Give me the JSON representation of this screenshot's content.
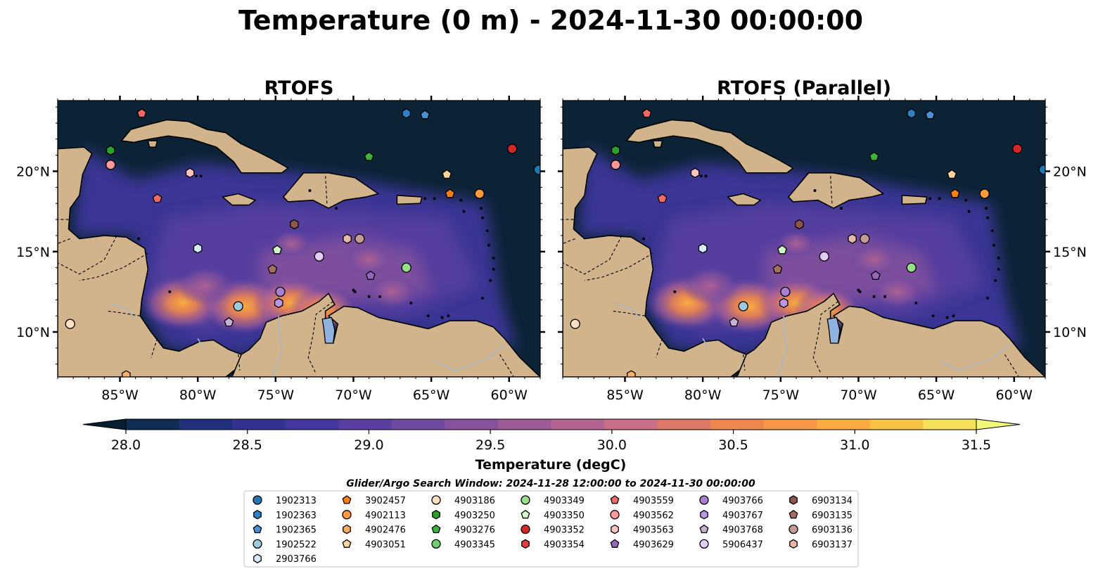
{
  "figure": {
    "title": "Temperature (0 m) - 2024-11-30 00:00:00"
  },
  "panels": [
    {
      "title": "RTOFS"
    },
    {
      "title": "RTOFS (Parallel)"
    }
  ],
  "map": {
    "lon_range": [
      -89,
      -58
    ],
    "lat_range": [
      7.2,
      24.4
    ],
    "lon_ticks": [
      {
        "value": -85,
        "label": "85°W"
      },
      {
        "value": -80,
        "label": "80°W"
      },
      {
        "value": -75,
        "label": "75°W"
      },
      {
        "value": -70,
        "label": "70°W"
      },
      {
        "value": -65,
        "label": "65°W"
      },
      {
        "value": -60,
        "label": "60°W"
      }
    ],
    "lat_ticks": [
      {
        "value": 10,
        "label": "10°N"
      },
      {
        "value": 15,
        "label": "15°N"
      },
      {
        "value": 20,
        "label": "20°N"
      }
    ],
    "colors": {
      "ocean": "#2e3172",
      "land": "#d2b48c",
      "lake": "#8fb3de",
      "river": "#a9b6c4",
      "deep": "#0b2335"
    }
  },
  "colorbar": {
    "label": "Temperature (degC)",
    "min": 28.0,
    "max": 31.5,
    "ticks": [
      "28.0",
      "28.5",
      "29.0",
      "29.5",
      "30.0",
      "30.5",
      "31.0",
      "31.5"
    ],
    "tick_values": [
      28.0,
      28.5,
      29.0,
      29.5,
      30.0,
      30.5,
      31.0,
      31.5
    ],
    "colors": [
      "#0e2d52",
      "#202f7a",
      "#33338f",
      "#44379b",
      "#59409f",
      "#6f4aa0",
      "#87529d",
      "#9d5b98",
      "#b46493",
      "#c96f87",
      "#de7869",
      "#ee8650",
      "#f89747",
      "#fbab40",
      "#f9c445",
      "#f4e05a"
    ],
    "under_color": "#061f30",
    "over_color": "#f1f77a"
  },
  "legend": {
    "title": "Glider/Argo Search Window: 2024-11-28 12:00:00 to 2024-11-30 00:00:00",
    "columns": [
      [
        {
          "id": "1902313",
          "marker": "circle",
          "color": "#1f77b4"
        },
        {
          "id": "1902363",
          "marker": "hexagon",
          "color": "#2c82c9"
        },
        {
          "id": "1902365",
          "marker": "pentagon",
          "color": "#4a90d9"
        },
        {
          "id": "1902522",
          "marker": "circle",
          "color": "#9ecae1"
        },
        {
          "id": "2903766",
          "marker": "hexagon",
          "color": "#d6ecfa"
        }
      ],
      [
        {
          "id": "3902457",
          "marker": "pentagon",
          "color": "#ff7f0e"
        },
        {
          "id": "4902113",
          "marker": "circle",
          "color": "#ff9a3c"
        },
        {
          "id": "4902476",
          "marker": "hexagon",
          "color": "#ffb065"
        },
        {
          "id": "4903051",
          "marker": "pentagon",
          "color": "#ffd39e"
        }
      ],
      [
        {
          "id": "4903186",
          "marker": "circle",
          "color": "#ffdfc4"
        },
        {
          "id": "4903250",
          "marker": "hexagon",
          "color": "#2ca02c"
        },
        {
          "id": "4903276",
          "marker": "pentagon",
          "color": "#3cb43c"
        },
        {
          "id": "4903345",
          "marker": "circle",
          "color": "#6fce6f"
        }
      ],
      [
        {
          "id": "4903349",
          "marker": "circle",
          "color": "#98df8a"
        },
        {
          "id": "4903350",
          "marker": "pentagon",
          "color": "#d3f8c8"
        },
        {
          "id": "4903352",
          "marker": "circle",
          "color": "#d62728"
        },
        {
          "id": "4903354",
          "marker": "hexagon",
          "color": "#e0413f"
        }
      ],
      [
        {
          "id": "4903559",
          "marker": "pentagon",
          "color": "#f0686a"
        },
        {
          "id": "4903562",
          "marker": "circle",
          "color": "#ff9896"
        },
        {
          "id": "4903563",
          "marker": "hexagon",
          "color": "#ffc4c2"
        },
        {
          "id": "4903629",
          "marker": "pentagon",
          "color": "#9467bd"
        }
      ],
      [
        {
          "id": "4903766",
          "marker": "circle",
          "color": "#a97fd6"
        },
        {
          "id": "4903767",
          "marker": "hexagon",
          "color": "#bb96e3"
        },
        {
          "id": "4903768",
          "marker": "pentagon",
          "color": "#c5b0d5"
        },
        {
          "id": "5906437",
          "marker": "circle",
          "color": "#e2cdf7"
        }
      ],
      [
        {
          "id": "6903134",
          "marker": "hexagon",
          "color": "#8c564b"
        },
        {
          "id": "6903135",
          "marker": "pentagon",
          "color": "#a86e5f"
        },
        {
          "id": "6903136",
          "marker": "circle",
          "color": "#c49c94"
        },
        {
          "id": "6903137",
          "marker": "hexagon",
          "color": "#e7b8a8"
        }
      ]
    ]
  },
  "platforms": [
    {
      "id": "4903559",
      "lon": -83.6,
      "lat": 23.6
    },
    {
      "id": "1902363",
      "lon": -66.6,
      "lat": 23.6
    },
    {
      "id": "1902365",
      "lon": -65.4,
      "lat": 23.5
    },
    {
      "id": "4903250",
      "lon": -85.6,
      "lat": 21.3
    },
    {
      "id": "4903276",
      "lon": -69.0,
      "lat": 20.9
    },
    {
      "id": "4903352",
      "lon": -59.8,
      "lat": 21.4
    },
    {
      "id": "4903562",
      "lon": -85.6,
      "lat": 20.4
    },
    {
      "id": "1902313",
      "lon": -58.1,
      "lat": 20.1
    },
    {
      "id": "4903563",
      "lon": -80.5,
      "lat": 19.9
    },
    {
      "id": "4903051",
      "lon": -64.0,
      "lat": 19.8
    },
    {
      "id": "3902457",
      "lon": -63.8,
      "lat": 18.6
    },
    {
      "id": "4902113",
      "lon": -61.9,
      "lat": 18.6
    },
    {
      "id": "4903559",
      "lon": -82.6,
      "lat": 18.3
    },
    {
      "id": "6903134",
      "lon": -73.8,
      "lat": 16.7
    },
    {
      "id": "6903137",
      "lon": -70.4,
      "lat": 15.8
    },
    {
      "id": "6903136",
      "lon": -69.6,
      "lat": 15.8
    },
    {
      "id": "2903766",
      "lon": -80.0,
      "lat": 15.2
    },
    {
      "id": "4903350",
      "lon": -74.9,
      "lat": 15.1
    },
    {
      "id": "5906437",
      "lon": -72.2,
      "lat": 14.7
    },
    {
      "id": "4903349",
      "lon": -66.6,
      "lat": 14.0
    },
    {
      "id": "6903135",
      "lon": -75.2,
      "lat": 13.9
    },
    {
      "id": "4903629",
      "lon": -68.9,
      "lat": 13.5
    },
    {
      "id": "4903766",
      "lon": -74.7,
      "lat": 12.5
    },
    {
      "id": "4903767",
      "lon": -74.8,
      "lat": 11.8
    },
    {
      "id": "1902522",
      "lon": -77.4,
      "lat": 11.6
    },
    {
      "id": "4903768",
      "lon": -78.0,
      "lat": 10.6
    },
    {
      "id": "4903186",
      "lon": -88.2,
      "lat": 10.5
    },
    {
      "id": "4902476",
      "lon": -84.6,
      "lat": 7.3
    }
  ],
  "warm_spots": [
    {
      "lon": -81.0,
      "lat": 11.8,
      "value": 31.0
    },
    {
      "lon": -77.0,
      "lat": 11.6,
      "value": 31.1
    },
    {
      "lon": -74.0,
      "lat": 11.8,
      "value": 30.8
    },
    {
      "lon": -72.0,
      "lat": 11.4,
      "value": 30.5
    },
    {
      "lon": -69.0,
      "lat": 14.5,
      "value": 29.9
    },
    {
      "lon": -74.0,
      "lat": 15.5,
      "value": 29.6
    },
    {
      "lon": -67.5,
      "lat": 12.5,
      "value": 30.0
    },
    {
      "lon": -79.5,
      "lat": 12.9,
      "value": 30.2
    }
  ]
}
